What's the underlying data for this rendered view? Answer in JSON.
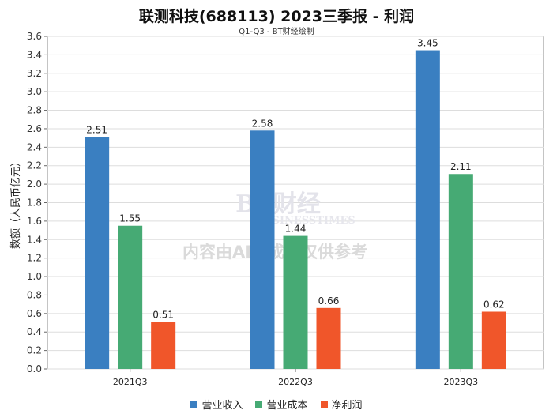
{
  "title": "联测科技(688113) 2023三季报 - 利润",
  "subtitle": "Q1-Q3 - BT财经绘制",
  "watermark": {
    "logo_text": "BT财经",
    "logo_subtext": "BUSINESSTIMES",
    "notice": "内容由AI生成，仅供参考"
  },
  "chart_data": {
    "type": "bar",
    "categories": [
      "2021Q3",
      "2022Q3",
      "2023Q3"
    ],
    "series": [
      {
        "name": "营业收入",
        "values": [
          2.51,
          2.58,
          3.45
        ],
        "color": "#3a7fc1"
      },
      {
        "name": "营业成本",
        "values": [
          1.55,
          1.44,
          2.11
        ],
        "color": "#46aa74"
      },
      {
        "name": "净利润",
        "values": [
          0.51,
          0.66,
          0.62
        ],
        "color": "#f0562a"
      }
    ],
    "xlabel": "",
    "ylabel": "数额（人民币亿元）",
    "ylim": [
      0,
      3.6
    ],
    "yticks": [
      "0.0",
      "0.2",
      "0.4",
      "0.6",
      "0.8",
      "1.0",
      "1.2",
      "1.4",
      "1.6",
      "1.8",
      "2.0",
      "2.2",
      "2.4",
      "2.6",
      "2.8",
      "3.0",
      "3.2",
      "3.4",
      "3.6"
    ],
    "grid": true,
    "legend": "bottom-center"
  }
}
